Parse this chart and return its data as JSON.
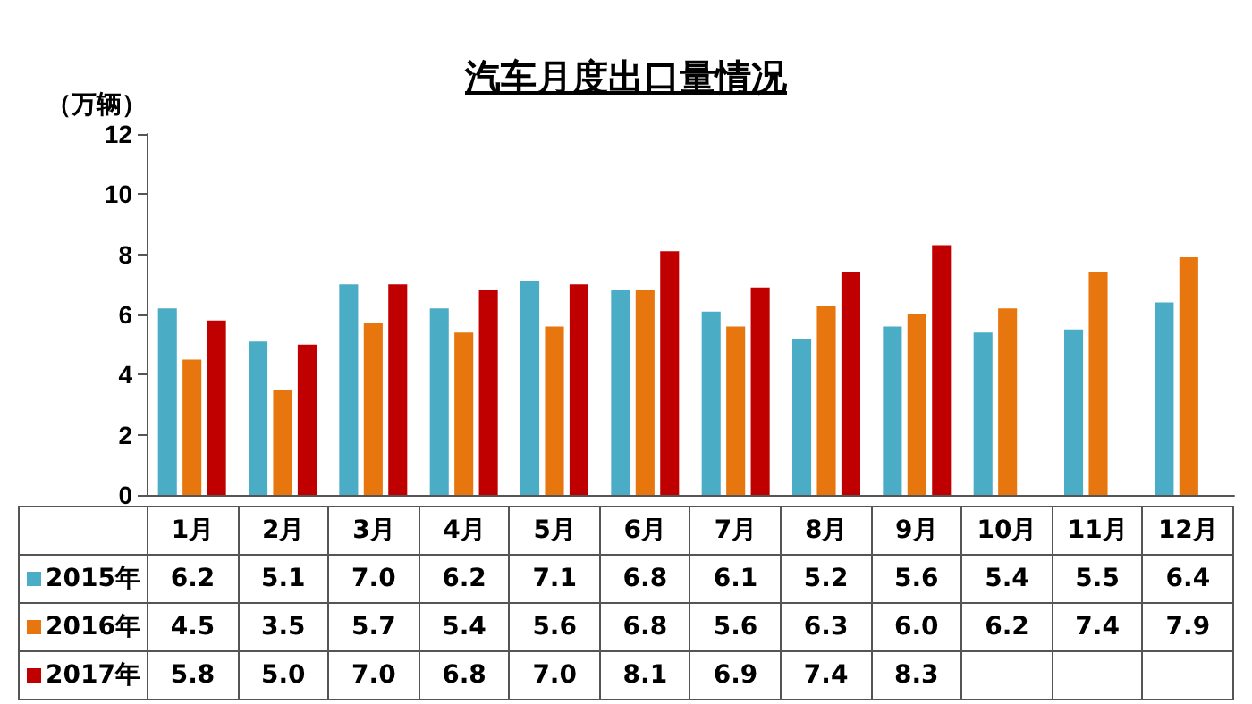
{
  "chart_data": {
    "type": "bar",
    "title": "汽车月度出口量情况",
    "ylabel": "（万辆）",
    "categories": [
      "1月",
      "2月",
      "3月",
      "4月",
      "5月",
      "6月",
      "7月",
      "8月",
      "9月",
      "10月",
      "11月",
      "12月"
    ],
    "series": [
      {
        "name": "2015年",
        "color": "#4bacc6",
        "values": [
          6.2,
          5.1,
          7.0,
          6.2,
          7.1,
          6.8,
          6.1,
          5.2,
          5.6,
          5.4,
          5.5,
          6.4
        ],
        "value_labels": [
          "6.2",
          "5.1",
          "7.0",
          "6.2",
          "7.1",
          "6.8",
          "6.1",
          "5.2",
          "5.6",
          "5.4",
          "5.5",
          "6.4"
        ]
      },
      {
        "name": "2016年",
        "color": "#e8760f",
        "values": [
          4.5,
          3.5,
          5.7,
          5.4,
          5.6,
          6.8,
          5.6,
          6.3,
          6.0,
          6.2,
          7.4,
          7.9
        ],
        "value_labels": [
          "4.5",
          "3.5",
          "5.7",
          "5.4",
          "5.6",
          "6.8",
          "5.6",
          "6.3",
          "6.0",
          "6.2",
          "7.4",
          "7.9"
        ]
      },
      {
        "name": "2017年",
        "color": "#c00000",
        "values": [
          5.8,
          5.0,
          7.0,
          6.8,
          7.0,
          8.1,
          6.9,
          7.4,
          8.3,
          null,
          null,
          null
        ],
        "value_labels": [
          "5.8",
          "5.0",
          "7.0",
          "6.8",
          "7.0",
          "8.1",
          "6.9",
          "7.4",
          "8.3",
          null,
          null,
          null
        ]
      }
    ],
    "ylim": [
      0,
      12
    ],
    "yticks": [
      0,
      2,
      4,
      6,
      8,
      10,
      12
    ],
    "grid": false,
    "legend": "bottom left"
  }
}
